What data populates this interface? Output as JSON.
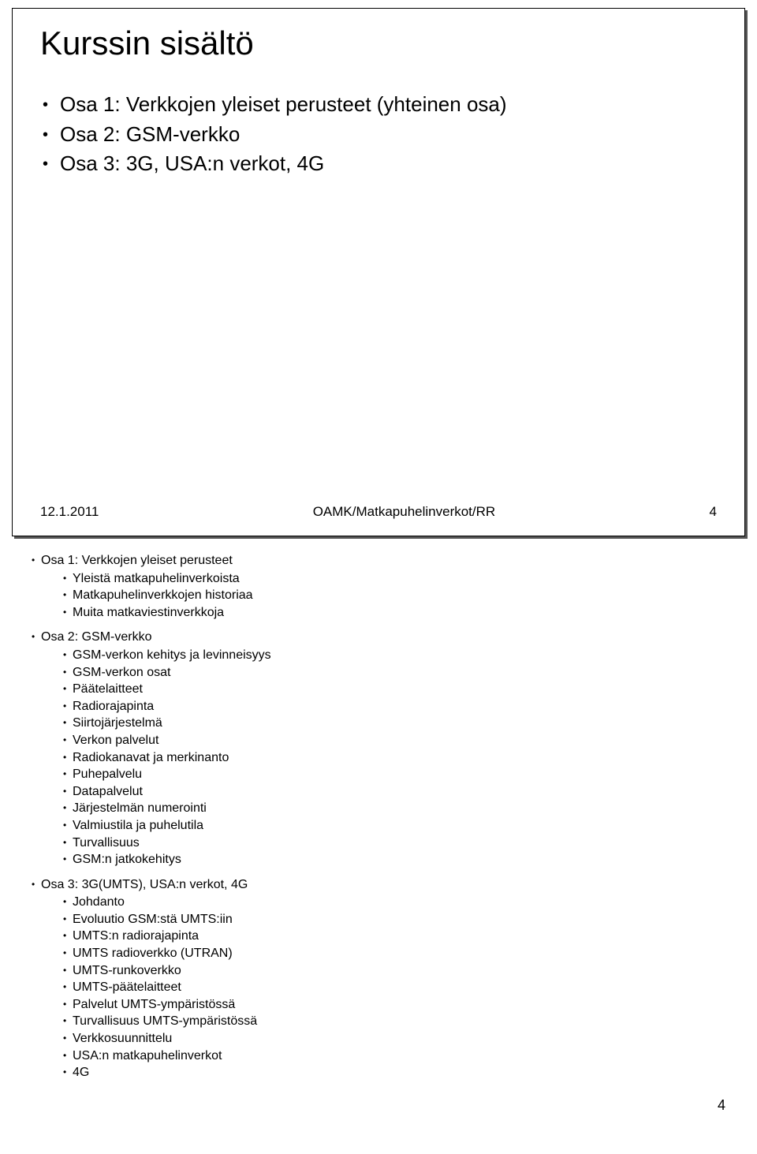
{
  "slide": {
    "title": "Kurssin sisältö",
    "bullets": [
      "Osa 1: Verkkojen yleiset perusteet (yhteinen osa)",
      "Osa 2: GSM-verkko",
      "Osa 3: 3G, USA:n verkot, 4G"
    ],
    "footer_date": "12.1.2011",
    "footer_center": "OAMK/Matkapuhelinverkot/RR",
    "footer_page": "4"
  },
  "notes": {
    "section1_title": "Osa 1: Verkkojen yleiset perusteet",
    "section1_items": [
      "Yleistä matkapuhelinverkoista",
      "Matkapuhelinverkkojen historiaa",
      "Muita matkaviestinverkkoja"
    ],
    "section2_title": "Osa 2: GSM-verkko",
    "section2_items": [
      "GSM-verkon kehitys ja levinneisyys",
      "GSM-verkon osat",
      "Päätelaitteet",
      "Radiorajapinta",
      "Siirtojärjestelmä",
      "Verkon palvelut",
      "Radiokanavat ja merkinanto",
      "Puhepalvelu",
      "Datapalvelut",
      "Järjestelmän numerointi",
      "Valmiustila ja puhelutila",
      "Turvallisuus",
      "GSM:n jatkokehitys"
    ],
    "section3_title": "Osa 3: 3G(UMTS), USA:n verkot, 4G",
    "section3_items": [
      "Johdanto",
      "Evoluutio GSM:stä UMTS:iin",
      "UMTS:n radiorajapinta",
      "UMTS radioverkko (UTRAN)",
      "UMTS-runkoverkko",
      "UMTS-päätelaitteet",
      "Palvelut UMTS-ympäristössä",
      "Turvallisuus UMTS-ympäristössä",
      "Verkkosuunnittelu",
      "USA:n matkapuhelinverkot",
      "4G"
    ]
  },
  "page_number": "4"
}
